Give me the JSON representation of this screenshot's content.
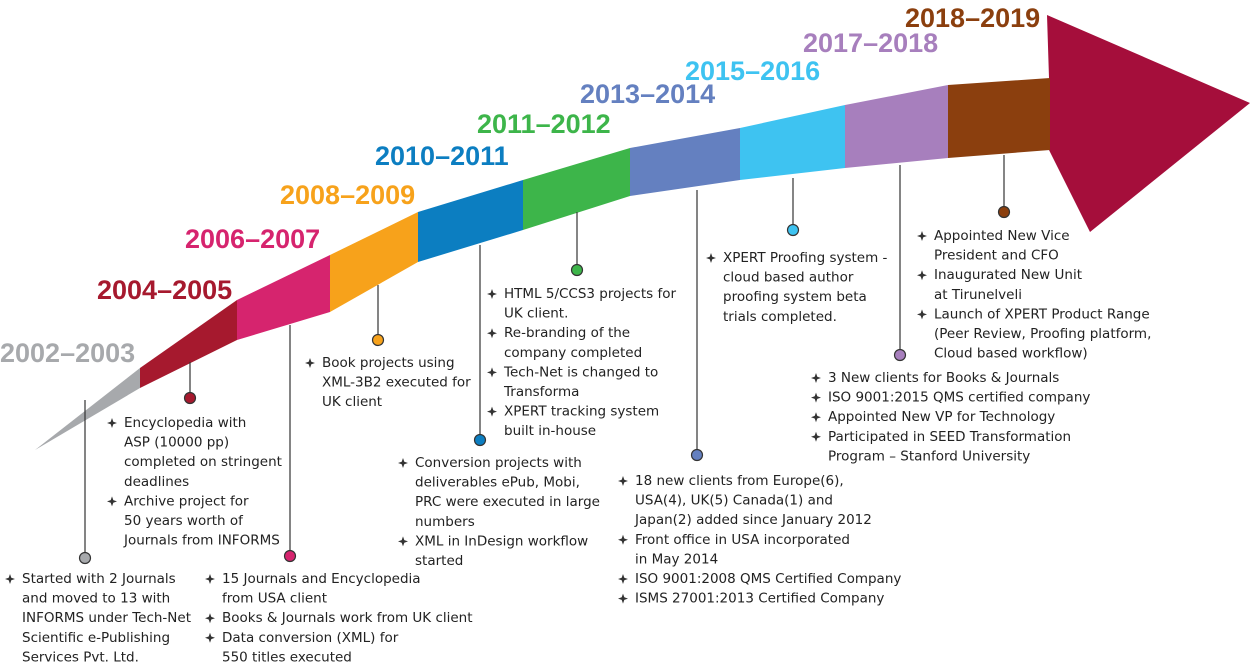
{
  "milestones": [
    {
      "period": "2002–2003",
      "items": [
        [
          "Started with 2 Journals",
          "and moved to 13 with",
          "INFORMS under Tech-Net",
          "Scientific e-Publishing",
          "Services Pvt. Ltd."
        ]
      ]
    },
    {
      "period": "2004–2005",
      "items": [
        [
          "Encyclopedia with",
          "ASP (10000 pp)",
          "completed on stringent",
          "deadlines"
        ],
        [
          "Archive project for",
          "50 years worth of",
          "Journals from INFORMS"
        ]
      ]
    },
    {
      "period": "2006–2007",
      "items": [
        [
          "15 Journals and Encyclopedia",
          "from USA client"
        ],
        [
          "Books & Journals work from UK client"
        ],
        [
          "Data conversion (XML) for",
          "550 titles executed"
        ]
      ]
    },
    {
      "period": "2008–2009",
      "items": [
        [
          "Book projects using",
          "XML-3B2 executed for",
          "UK client"
        ]
      ]
    },
    {
      "period": "2010–2011",
      "items": [
        [
          "Conversion projects with",
          "deliverables ePub, Mobi,",
          "PRC were executed in large",
          "numbers"
        ],
        [
          "XML in InDesign workflow",
          "started"
        ]
      ]
    },
    {
      "period": "2011–2012",
      "items": [
        [
          "HTML 5/CCS3 projects for",
          "UK client."
        ],
        [
          "Re-branding of the",
          "company completed"
        ],
        [
          "Tech-Net is changed to",
          "Transforma"
        ],
        [
          "XPERT tracking system",
          "built in-house"
        ]
      ]
    },
    {
      "period": "2013–2014",
      "items": [
        [
          "18 new clients from Europe(6),",
          "USA(4), UK(5) Canada(1) and",
          "Japan(2) added since January 2012"
        ],
        [
          "Front office in USA incorporated",
          "in May 2014"
        ],
        [
          "ISO 9001:2008 QMS Certified Company"
        ],
        [
          "ISMS 27001:2013 Certified Company"
        ]
      ]
    },
    {
      "period": "2015–2016",
      "items": [
        [
          "XPERT Proofing system -",
          "cloud based author",
          "proofing system beta",
          "trials completed."
        ]
      ]
    },
    {
      "period": "2017–2018",
      "items": [
        [
          "3 New clients for Books & Journals"
        ],
        [
          "ISO 9001:2015 QMS certified company"
        ],
        [
          "Appointed New VP for Technology"
        ],
        [
          "Participated in SEED Transformation",
          "Program – Stanford University"
        ]
      ]
    },
    {
      "period": "2018–2019",
      "items": [
        [
          "Appointed New Vice",
          "President and CFO"
        ],
        [
          "Inaugurated New Unit",
          "at Tirunelveli"
        ],
        [
          "Launch of XPERT Product Range",
          "(Peer Review, Proofing platform,",
          "Cloud based workflow)"
        ]
      ]
    }
  ]
}
